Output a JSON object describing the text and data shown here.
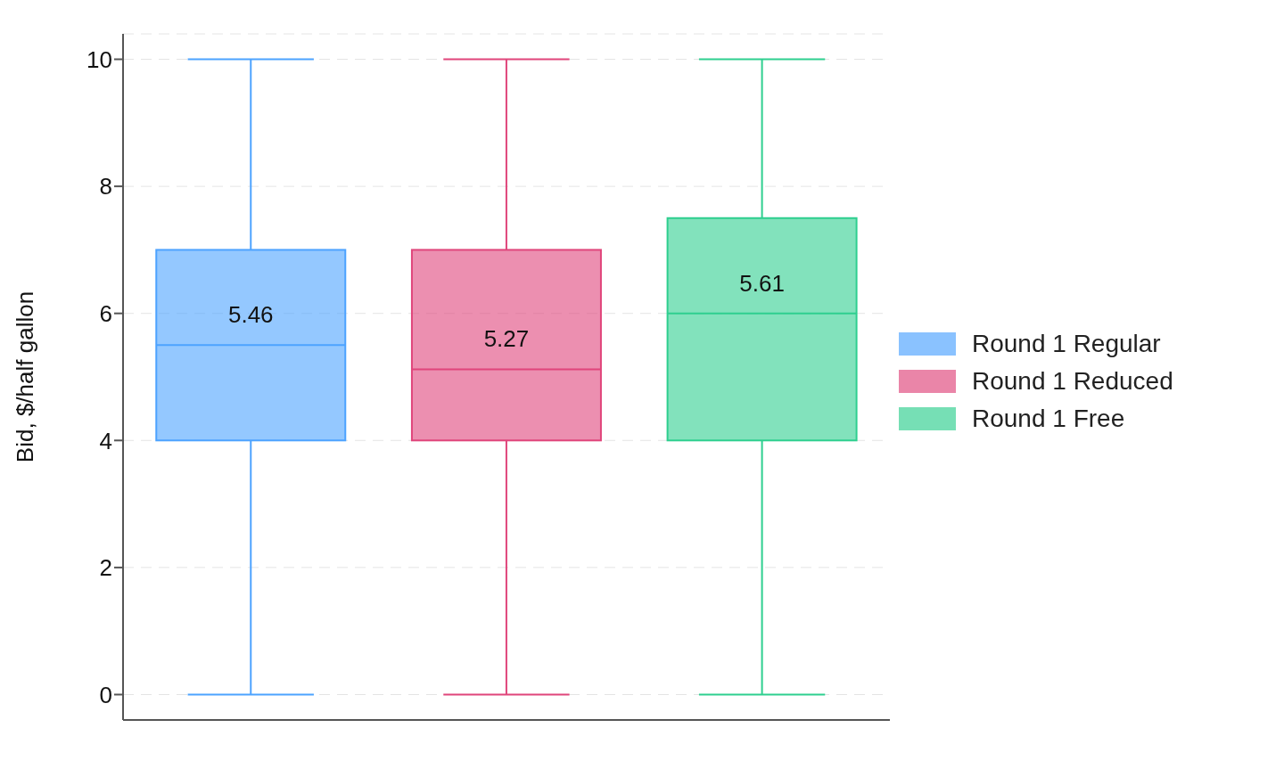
{
  "chart_data": {
    "type": "box",
    "ylabel": "Bid, $/half gallon",
    "categories": [
      null,
      null,
      null
    ],
    "series": [
      {
        "name": "Round 1 Regular",
        "color": "#4da3ff",
        "boxes": [
          {
            "low": 0,
            "q1": 4,
            "median": 5.5,
            "q3": 7,
            "high": 10
          },
          null,
          null
        ]
      },
      {
        "name": "Round 1 Reduced",
        "color": "#e0457b",
        "boxes": [
          null,
          {
            "low": 0,
            "q1": 4,
            "median": 5.12,
            "q3": 7,
            "high": 10
          },
          null
        ]
      },
      {
        "name": "Round 1 Free",
        "color": "#2ecf8f",
        "boxes": [
          null,
          null,
          {
            "low": 0,
            "q1": 4,
            "median": 6,
            "q3": 7.5,
            "high": 10
          }
        ]
      }
    ],
    "annotations": [
      "5.46",
      "5.27",
      "5.61"
    ],
    "ylim": [
      -0.4,
      10.4
    ],
    "yticks": [
      0,
      2,
      4,
      6,
      8,
      10
    ],
    "grid": "y",
    "legend": "right"
  }
}
